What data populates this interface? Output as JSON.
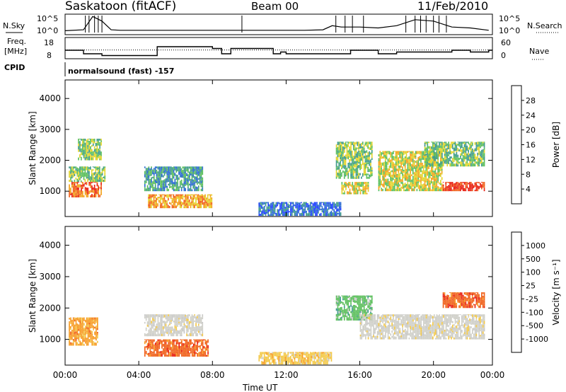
{
  "header": {
    "title": "Saskatoon (fitACF)",
    "beam": "Beam 00",
    "date": "11/Feb/2010"
  },
  "labels": {
    "nsky": "N.Sky",
    "nsearch": "N.Search",
    "freq_line1": "Freq.",
    "freq_line2": "[MHz]",
    "nave": "Nave",
    "cpid": "CPID",
    "cpid_value": "normalsound (fast) -157",
    "ylabel": "Slant Range [km]",
    "xlabel": "Time UT"
  },
  "chart_data": [
    {
      "type": "line",
      "panel": "noise",
      "y_ticks_left": [
        "10^5",
        "10^0"
      ],
      "y_ticks_right": [
        "10^5",
        "10^0"
      ],
      "series": [
        {
          "name": "N.Sky",
          "x_hours": [
            0,
            1,
            1.5,
            2,
            2.5,
            3,
            4,
            6,
            8,
            10,
            11,
            12,
            13,
            14,
            14.5,
            15,
            16,
            17,
            18,
            19,
            20,
            21,
            22,
            23
          ],
          "values_log": [
            0.4,
            0.6,
            3.5,
            2.5,
            0.6,
            0.5,
            0.5,
            0.5,
            0.5,
            0.5,
            0.5,
            0.5,
            0.5,
            0.6,
            1.5,
            1.2,
            1.2,
            1.0,
            1.5,
            2.8,
            2.5,
            1.2,
            1.0,
            0.5
          ]
        }
      ]
    },
    {
      "type": "line",
      "panel": "frequency",
      "y_ticks_left": [
        "18",
        "8"
      ],
      "y_ticks_right": [
        "60",
        "0"
      ],
      "series": [
        {
          "name": "Freq",
          "x_hours": [
            0,
            0.5,
            1,
            2,
            4,
            5,
            7,
            8,
            8.5,
            9,
            10,
            11,
            11.3,
            11.7,
            12,
            14,
            15,
            15.5,
            16.8,
            17,
            18,
            19,
            20,
            21,
            22,
            23
          ],
          "values_mhz": [
            12,
            12,
            10,
            9,
            9,
            14,
            14,
            13,
            10,
            13,
            13,
            13,
            10,
            11,
            10,
            10,
            10,
            12,
            12,
            10,
            11,
            11,
            11,
            12,
            11,
            12
          ]
        },
        {
          "name": "Nave",
          "x_hours": [
            0,
            23
          ],
          "values": [
            25,
            25
          ]
        }
      ]
    },
    {
      "type": "heatmap",
      "panel": "power",
      "x_range_hours": [
        0,
        23
      ],
      "y_range_km": [
        180,
        4600
      ],
      "y_ticks": [
        1000,
        2000,
        3000,
        4000
      ],
      "colorbar_label": "Power [dB]",
      "colorbar_ticks": [
        4,
        8,
        12,
        16,
        20,
        24,
        28
      ],
      "regions": [
        {
          "t0": 0.2,
          "t1": 2.0,
          "r0": 800,
          "r1": 1300,
          "level": 26
        },
        {
          "t0": 0.2,
          "t1": 2.2,
          "r0": 1300,
          "r1": 1800,
          "level": 14
        },
        {
          "t0": 0.7,
          "t1": 2.0,
          "r0": 2000,
          "r1": 2700,
          "level": 12
        },
        {
          "t0": 4.5,
          "t1": 8.0,
          "r0": 450,
          "r1": 900,
          "level": 20
        },
        {
          "t0": 4.3,
          "t1": 7.5,
          "r0": 1000,
          "r1": 1800,
          "level": 8
        },
        {
          "t0": 10.5,
          "t1": 15.0,
          "r0": 200,
          "r1": 650,
          "level": 7
        },
        {
          "t0": 14.7,
          "t1": 16.7,
          "r0": 1400,
          "r1": 2600,
          "level": 14
        },
        {
          "t0": 15.0,
          "t1": 16.5,
          "r0": 900,
          "r1": 1300,
          "level": 18
        },
        {
          "t0": 17.0,
          "t1": 20.5,
          "r0": 1000,
          "r1": 2300,
          "level": 18
        },
        {
          "t0": 20.5,
          "t1": 22.8,
          "r0": 1000,
          "r1": 1300,
          "level": 28
        },
        {
          "t0": 19.5,
          "t1": 22.8,
          "r0": 1800,
          "r1": 2600,
          "level": 14
        }
      ]
    },
    {
      "type": "heatmap",
      "panel": "velocity",
      "x_range_hours": [
        0,
        23
      ],
      "y_range_km": [
        180,
        4600
      ],
      "y_ticks": [
        1000,
        2000,
        3000,
        4000
      ],
      "x_ticks": [
        "00:00",
        "04:00",
        "08:00",
        "12:00",
        "16:00",
        "20:00",
        "00:00"
      ],
      "colorbar_label": "Velocity [m s⁻¹]",
      "colorbar_ticks": [
        1000,
        500,
        100,
        25,
        -25,
        -100,
        -500,
        -1000
      ],
      "regions": [
        {
          "t0": 0.2,
          "t1": 1.8,
          "r0": 800,
          "r1": 1700,
          "level": -100
        },
        {
          "t0": 4.3,
          "t1": 7.8,
          "r0": 450,
          "r1": 1000,
          "level": -500
        },
        {
          "t0": 4.3,
          "t1": 7.5,
          "r0": 1100,
          "r1": 1800,
          "level": 0
        },
        {
          "t0": 10.5,
          "t1": 14.5,
          "r0": 200,
          "r1": 600,
          "level": -25
        },
        {
          "t0": 14.7,
          "t1": 16.7,
          "r0": 1600,
          "r1": 2400,
          "level": 100
        },
        {
          "t0": 16.0,
          "t1": 22.8,
          "r0": 1000,
          "r1": 1800,
          "level": 0
        },
        {
          "t0": 20.5,
          "t1": 22.8,
          "r0": 2000,
          "r1": 2500,
          "level": -500
        }
      ]
    }
  ],
  "colors": {
    "power_scale": [
      "#1e40ff",
      "#2a6bd1",
      "#3f9b8a",
      "#5cbf5c",
      "#e3d52d",
      "#f3a21c",
      "#f0601a",
      "#e81d0f"
    ],
    "velocity_scale": [
      "#e81d0f",
      "#f0601a",
      "#f79b22",
      "#f3c94a",
      "#cfcfc8",
      "#c8c8c8",
      "#5cbf5c",
      "#3f9b8a",
      "#2a6bd1",
      "#1e40ff"
    ]
  }
}
